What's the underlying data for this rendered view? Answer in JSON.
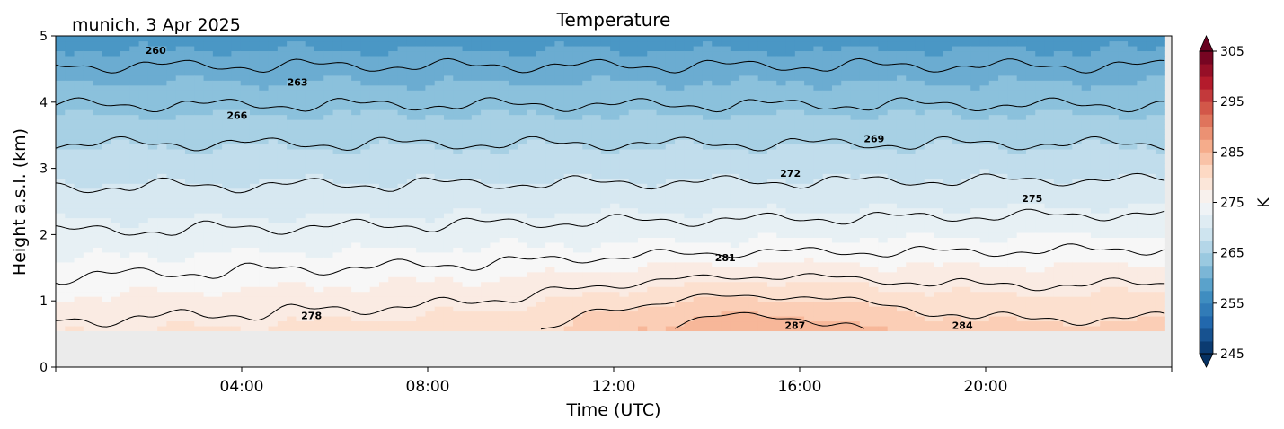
{
  "chart_data": {
    "type": "heatmap",
    "title": "Temperature",
    "subtitle": "munich, 3 Apr 2025",
    "xlabel": "Time (UTC)",
    "ylabel": "Height a.s.l. (km)",
    "xlim_hours": [
      0,
      24
    ],
    "ylim_km": [
      0,
      5
    ],
    "x_ticks": [
      "04:00",
      "08:00",
      "12:00",
      "16:00",
      "20:00"
    ],
    "y_ticks": [
      "0",
      "1",
      "2",
      "3",
      "4",
      "5"
    ],
    "grid": false,
    "data_min_height_km": 0.55,
    "colorbar": {
      "label": "K",
      "min": 245,
      "max": 305,
      "ticks": [
        "245",
        "255",
        "265",
        "275",
        "285",
        "295",
        "305"
      ],
      "colormap": "RdBu_r"
    },
    "no_data_color": "#ebebeb",
    "contour_levels": [
      "260",
      "263",
      "266",
      "269",
      "272",
      "275",
      "278",
      "281",
      "284",
      "287"
    ],
    "contour_labels": [
      {
        "text": "260",
        "time_h": 2.15,
        "height_km": 4.78
      },
      {
        "text": "263",
        "time_h": 5.2,
        "height_km": 4.3
      },
      {
        "text": "266",
        "time_h": 3.9,
        "height_km": 3.8
      },
      {
        "text": "269",
        "time_h": 17.6,
        "height_km": 3.45
      },
      {
        "text": "272",
        "time_h": 15.8,
        "height_km": 2.93
      },
      {
        "text": "275",
        "time_h": 21.0,
        "height_km": 2.55
      },
      {
        "text": "278",
        "time_h": 5.5,
        "height_km": 0.78
      },
      {
        "text": "281",
        "time_h": 14.4,
        "height_km": 1.65
      },
      {
        "text": "284",
        "time_h": 19.5,
        "height_km": 0.63
      },
      {
        "text": "287",
        "time_h": 15.9,
        "height_km": 0.63
      }
    ],
    "profile_note": "Temperature decreases with height; surface temperatures 278 K near 05:00, peaking around 287-288 K near 14:00-16:00 UTC."
  }
}
